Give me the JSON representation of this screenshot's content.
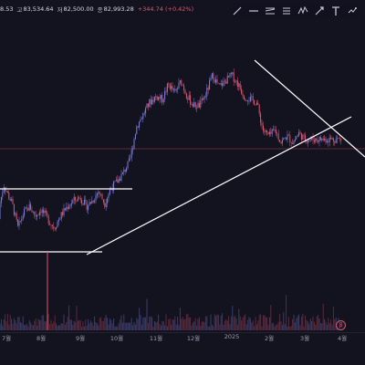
{
  "ohlc_bar": {
    "open_partial": "8.53",
    "high_label": "고",
    "high_value": "83,534.64",
    "low_label": "저",
    "low_value": "82,500.00",
    "close_label": "종",
    "close_value": "82,993.28",
    "change": "+344.74 (+0.42%)"
  },
  "toolbar": {
    "tools": [
      {
        "name": "trend-line-tool-icon"
      },
      {
        "name": "horizontal-line-tool-icon"
      },
      {
        "name": "pitchfork-tool-icon"
      },
      {
        "name": "brush-tool-icon"
      },
      {
        "name": "pattern-tool-icon"
      },
      {
        "name": "shapes-tool-icon"
      },
      {
        "name": "text-tool-icon"
      },
      {
        "name": "measure-tool-icon"
      }
    ]
  },
  "colors": {
    "background": "#13121f",
    "bull_candle": "#7b7fe0",
    "bear_candle": "#e0566b",
    "drawing_line": "#ffffff",
    "price_line": "#5a2a3a"
  },
  "corner_badge": "β",
  "chart_data": {
    "type": "candlestick",
    "title": "",
    "timeframe": "daily",
    "x_ticks": [
      "7월",
      "8월",
      "9월",
      "10월",
      "11월",
      "12월",
      "2025",
      "2월",
      "3월",
      "4월"
    ],
    "y_range": [
      45000,
      110000
    ],
    "last_close": 82993.28,
    "series": [
      {
        "month": "7월",
        "close_points": [
          57000,
          62000,
          60000,
          64000,
          68000,
          66000
        ]
      },
      {
        "month": "8월",
        "close_points": [
          62000,
          54000,
          59000,
          61000,
          58000,
          60000
        ]
      },
      {
        "month": "9월",
        "close_points": [
          57000,
          54000,
          58000,
          61000,
          63000,
          64000
        ]
      },
      {
        "month": "10월",
        "close_points": [
          61000,
          63000,
          66000,
          62000,
          67000,
          69000
        ]
      },
      {
        "month": "11월",
        "close_points": [
          72000,
          76000,
          87000,
          91000,
          95000,
          97000
        ]
      },
      {
        "month": "12월",
        "close_points": [
          96000,
          101000,
          98000,
          102000,
          97000,
          94000
        ]
      },
      {
        "month": "2025",
        "close_points": [
          94000,
          98000,
          104000,
          100000,
          102000,
          104000
        ]
      },
      {
        "month": "2월",
        "close_points": [
          101000,
          97000,
          96000,
          95000,
          86000,
          84000
        ]
      },
      {
        "month": "3월",
        "close_points": [
          86000,
          82000,
          84000,
          82000,
          85000,
          82993
        ]
      }
    ],
    "annotations": [
      {
        "type": "horizontal_line",
        "price": 66000,
        "from": "7월",
        "to": "10월"
      },
      {
        "type": "horizontal_line",
        "price": 54000,
        "from": "7월",
        "to": "9월"
      },
      {
        "type": "trend_line",
        "from": [
          "9월",
          54000
        ],
        "to": [
          "4월",
          96000
        ]
      },
      {
        "type": "trend_line",
        "from": [
          "2025",
          109000
        ],
        "to": [
          "4월",
          78000
        ]
      }
    ]
  }
}
